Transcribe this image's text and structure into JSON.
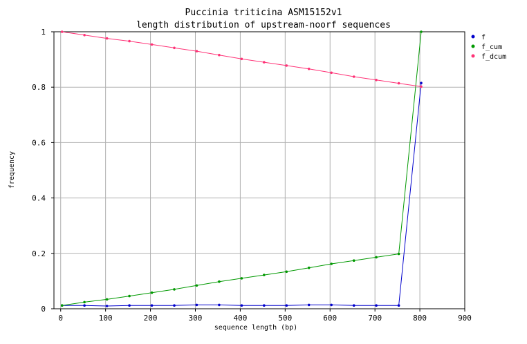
{
  "chart_data": {
    "type": "line",
    "title": "Puccinia triticina ASM15152v1",
    "subtitle": "length distribution of upstream-noorf sequences",
    "xlabel": "sequence length (bp)",
    "ylabel": "frequency",
    "xlim": [
      -15,
      900
    ],
    "ylim": [
      0,
      1
    ],
    "xticks": [
      0,
      100,
      200,
      300,
      400,
      500,
      600,
      700,
      800,
      900
    ],
    "yticks": [
      0,
      0.2,
      0.4,
      0.6,
      0.8,
      1
    ],
    "ytick_labels": [
      "0",
      "0.2",
      "0.4",
      "0.6",
      "0.8",
      "1"
    ],
    "grid": true,
    "legend_position": "top-right",
    "x": [
      3,
      53,
      103,
      153,
      203,
      253,
      303,
      353,
      403,
      453,
      503,
      553,
      603,
      653,
      703,
      753,
      803
    ],
    "series": [
      {
        "name": "f",
        "color": "#0000cc",
        "values": [
          0.012,
          0.012,
          0.01,
          0.012,
          0.012,
          0.012,
          0.014,
          0.014,
          0.012,
          0.012,
          0.012,
          0.014,
          0.014,
          0.012,
          0.012,
          0.012,
          0.815
        ]
      },
      {
        "name": "f_cum",
        "color": "#009900",
        "values": [
          0.012,
          0.024,
          0.034,
          0.046,
          0.058,
          0.07,
          0.084,
          0.098,
          0.11,
          0.122,
          0.134,
          0.148,
          0.162,
          0.174,
          0.186,
          0.198,
          1.0
        ]
      },
      {
        "name": "f_dcum",
        "color": "#ff3377",
        "values": [
          1.0,
          0.988,
          0.976,
          0.966,
          0.954,
          0.942,
          0.93,
          0.916,
          0.902,
          0.89,
          0.878,
          0.866,
          0.852,
          0.838,
          0.826,
          0.814,
          0.802
        ]
      }
    ]
  }
}
